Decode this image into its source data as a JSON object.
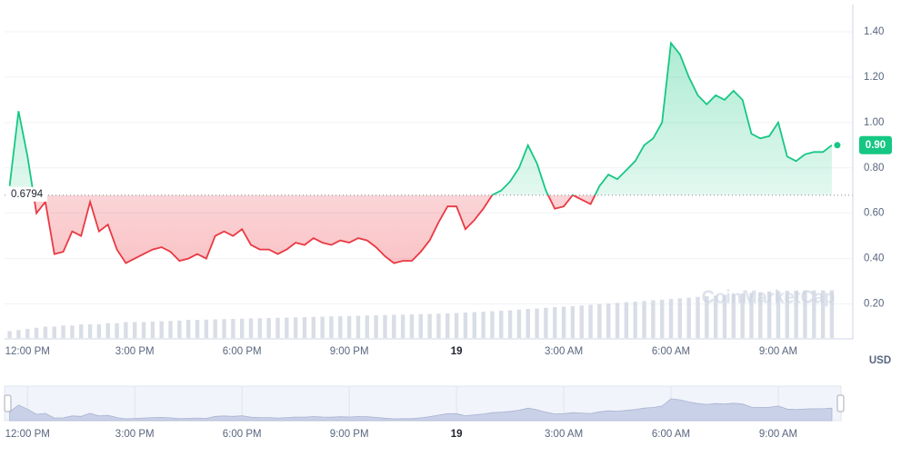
{
  "chart_data": {
    "type": "line",
    "categories": [
      null,
      null,
      "12:00 PM",
      null,
      null,
      null,
      null,
      null,
      null,
      null,
      null,
      null,
      null,
      null,
      "3:00 PM",
      null,
      null,
      null,
      null,
      null,
      null,
      null,
      null,
      null,
      null,
      null,
      "6:00 PM",
      null,
      null,
      null,
      null,
      null,
      null,
      null,
      null,
      null,
      null,
      null,
      "9:00 PM",
      null,
      null,
      null,
      null,
      null,
      null,
      null,
      null,
      null,
      null,
      null,
      "19",
      null,
      null,
      null,
      null,
      null,
      null,
      null,
      null,
      null,
      null,
      null,
      "3:00 AM",
      null,
      null,
      null,
      null,
      null,
      null,
      null,
      null,
      null,
      null,
      null,
      "6:00 AM",
      null,
      null,
      null,
      null,
      null,
      null,
      null,
      null,
      null,
      null,
      null,
      "9:00 AM",
      null,
      null,
      null,
      null,
      null,
      null
    ],
    "values": [
      0.72,
      1.05,
      0.85,
      0.6,
      0.65,
      0.42,
      0.43,
      0.52,
      0.5,
      0.65,
      0.52,
      0.55,
      0.44,
      0.38,
      0.4,
      0.42,
      0.44,
      0.45,
      0.43,
      0.39,
      0.4,
      0.42,
      0.4,
      0.5,
      0.52,
      0.5,
      0.53,
      0.46,
      0.44,
      0.44,
      0.42,
      0.44,
      0.47,
      0.46,
      0.49,
      0.47,
      0.46,
      0.48,
      0.47,
      0.49,
      0.48,
      0.45,
      0.41,
      0.38,
      0.39,
      0.39,
      0.43,
      0.48,
      0.56,
      0.63,
      0.63,
      0.53,
      0.57,
      0.62,
      0.68,
      0.7,
      0.74,
      0.8,
      0.9,
      0.82,
      0.7,
      0.62,
      0.63,
      0.68,
      0.66,
      0.64,
      0.72,
      0.77,
      0.75,
      0.79,
      0.83,
      0.9,
      0.93,
      1.0,
      1.35,
      1.3,
      1.2,
      1.12,
      1.08,
      1.12,
      1.1,
      1.14,
      1.1,
      0.95,
      0.93,
      0.94,
      1.0,
      0.85,
      0.83,
      0.86,
      0.87,
      0.87,
      0.9
    ],
    "volume": [
      0.08,
      0.085,
      0.09,
      0.095,
      0.1,
      0.1,
      0.105,
      0.105,
      0.11,
      0.11,
      0.11,
      0.115,
      0.115,
      0.12,
      0.12,
      0.12,
      0.122,
      0.124,
      0.125,
      0.127,
      0.13,
      0.13,
      0.131,
      0.132,
      0.133,
      0.134,
      0.135,
      0.136,
      0.137,
      0.138,
      0.139,
      0.14,
      0.141,
      0.142,
      0.143,
      0.144,
      0.145,
      0.146,
      0.147,
      0.148,
      0.149,
      0.15,
      0.151,
      0.152,
      0.153,
      0.154,
      0.155,
      0.156,
      0.157,
      0.158,
      0.16,
      0.162,
      0.164,
      0.166,
      0.168,
      0.17,
      0.172,
      0.175,
      0.178,
      0.18,
      0.183,
      0.186,
      0.188,
      0.19,
      0.193,
      0.196,
      0.199,
      0.202,
      0.205,
      0.208,
      0.21,
      0.213,
      0.216,
      0.219,
      0.222,
      0.225,
      0.228,
      0.231,
      0.234,
      0.237,
      0.24,
      0.243,
      0.246,
      0.249,
      0.252,
      0.255,
      0.257,
      0.258,
      0.259,
      0.26,
      0.26,
      0.26,
      0.26
    ],
    "ylim": [
      0.05,
      1.52
    ],
    "yticks": [
      {
        "value": 0.2,
        "label": "0.20"
      },
      {
        "value": 0.4,
        "label": "0.40"
      },
      {
        "value": 0.6,
        "label": "0.60"
      },
      {
        "value": 0.8,
        "label": "0.80"
      },
      {
        "value": 1.0,
        "label": "1.00"
      },
      {
        "value": 1.2,
        "label": "1.20"
      },
      {
        "value": 1.4,
        "label": "1.40"
      }
    ],
    "baseline": 0.6794,
    "current_price": {
      "value": 0.9,
      "label": "0.90"
    },
    "currency": "USD",
    "watermark": "CoinMarketCap",
    "up_color": "#16c784",
    "down_color": "#ea3943",
    "grid": true
  }
}
